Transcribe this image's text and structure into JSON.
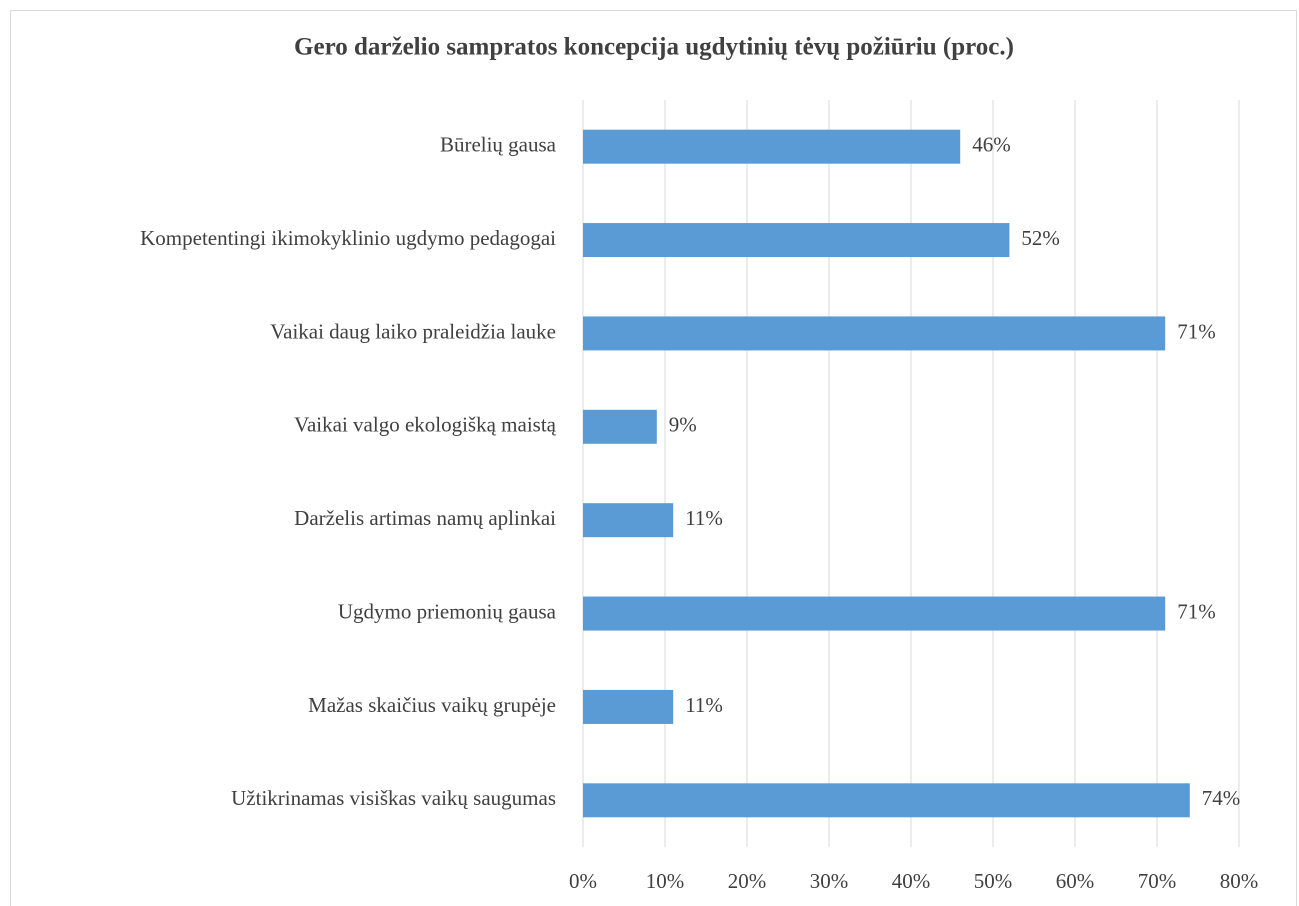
{
  "chart_data": {
    "type": "barh",
    "title": "Gero darželio sampratos koncepcija ugdytinių tėvų požiūriu (proc.)",
    "categories": [
      "Būrelių gausa",
      "Kompetentingi ikimokyklinio ugdymo pedagogai",
      "Vaikai daug laiko praleidžia lauke",
      "Vaikai valgo ekologišką maistą",
      "Darželis artimas namų aplinkai",
      "Ugdymo priemonių gausa",
      "Mažas skaičius vaikų grupėje",
      "Užtikrinamas visiškas vaikų saugumas"
    ],
    "values": [
      46,
      52,
      71,
      9,
      11,
      71,
      11,
      74
    ],
    "value_labels": [
      "46%",
      "52%",
      "71%",
      "9%",
      "11%",
      "71%",
      "11%",
      "74%"
    ],
    "color": "#5b9bd5",
    "xlim": [
      0,
      80
    ],
    "xticks": [
      {
        "value": 0,
        "label": "0%"
      },
      {
        "value": 10,
        "label": "10%"
      },
      {
        "value": 20,
        "label": "20%"
      },
      {
        "value": 30,
        "label": "30%"
      },
      {
        "value": 40,
        "label": "40%"
      },
      {
        "value": 50,
        "label": "50%"
      },
      {
        "value": 60,
        "label": "60%"
      },
      {
        "value": 70,
        "label": "70%"
      },
      {
        "value": 80,
        "label": "80%"
      }
    ],
    "grid": true
  }
}
